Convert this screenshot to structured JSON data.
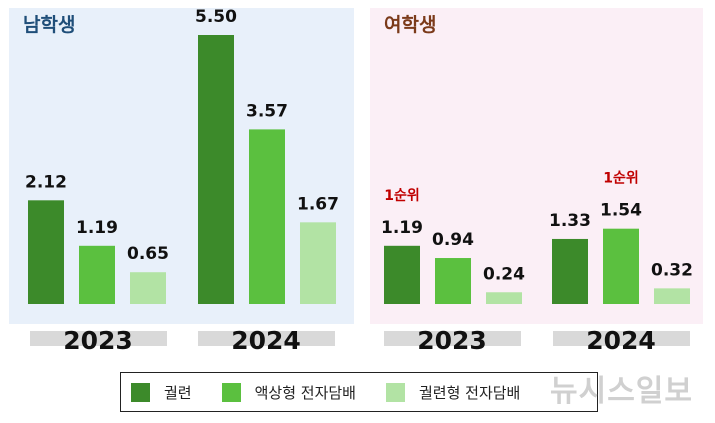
{
  "chart_data": [
    {
      "type": "bar",
      "title": "남학생",
      "categories": [
        "2023",
        "2024"
      ],
      "series": [
        {
          "name": "궐련",
          "values": [
            2.12,
            5.5
          ]
        },
        {
          "name": "액상형 전자담배",
          "values": [
            1.19,
            3.57
          ]
        },
        {
          "name": "궐련형 전자담배",
          "values": [
            0.65,
            1.67
          ]
        }
      ],
      "annotations": [],
      "ylim": [
        0,
        5.5
      ]
    },
    {
      "type": "bar",
      "title": "여학생",
      "categories": [
        "2023",
        "2024"
      ],
      "series": [
        {
          "name": "궐련",
          "values": [
            1.19,
            1.33
          ]
        },
        {
          "name": "액상형 전자담배",
          "values": [
            0.94,
            1.54
          ]
        },
        {
          "name": "궐련형 전자담배",
          "values": [
            0.24,
            0.32
          ]
        }
      ],
      "annotations": [
        {
          "text": "1순위",
          "category": "2023",
          "series": "궐련"
        },
        {
          "text": "1순위",
          "category": "2024",
          "series": "액상형 전자담배"
        }
      ],
      "ylim": [
        0,
        5.5
      ]
    }
  ],
  "legend": [
    {
      "label": "궐련",
      "color": "#3c8a2a"
    },
    {
      "label": "액상형 전자담배",
      "color": "#5bc03f"
    },
    {
      "label": "궐련형 전자담배",
      "color": "#b2e3a4"
    }
  ],
  "colors": {
    "panel_male_bg": "#e8f0fa",
    "panel_female_bg": "#fbeff6",
    "title_male": "#1f4e79",
    "title_female": "#7b3a1a",
    "year_bar": "#d9d9d9",
    "annotation": "#c00000"
  },
  "watermark": "뉴시스일보"
}
